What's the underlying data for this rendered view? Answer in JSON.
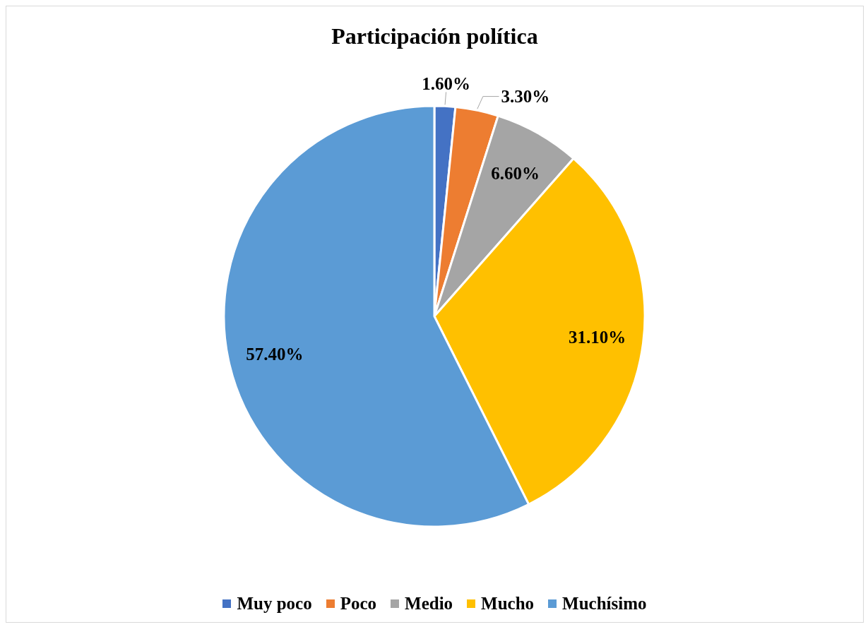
{
  "chart_data": {
    "type": "pie",
    "title": "Participación política",
    "categories": [
      "Muy poco",
      "Poco",
      "Medio",
      "Mucho",
      "Muchísimo"
    ],
    "values": [
      1.6,
      3.3,
      6.6,
      31.1,
      57.4
    ],
    "value_labels": [
      "1.60%",
      "3.30%",
      "6.60%",
      "31.10%",
      "57.40%"
    ],
    "colors": [
      "#4472c4",
      "#ed7d31",
      "#a5a5a5",
      "#ffc000",
      "#5b9bd5"
    ],
    "legend": "bottom"
  }
}
